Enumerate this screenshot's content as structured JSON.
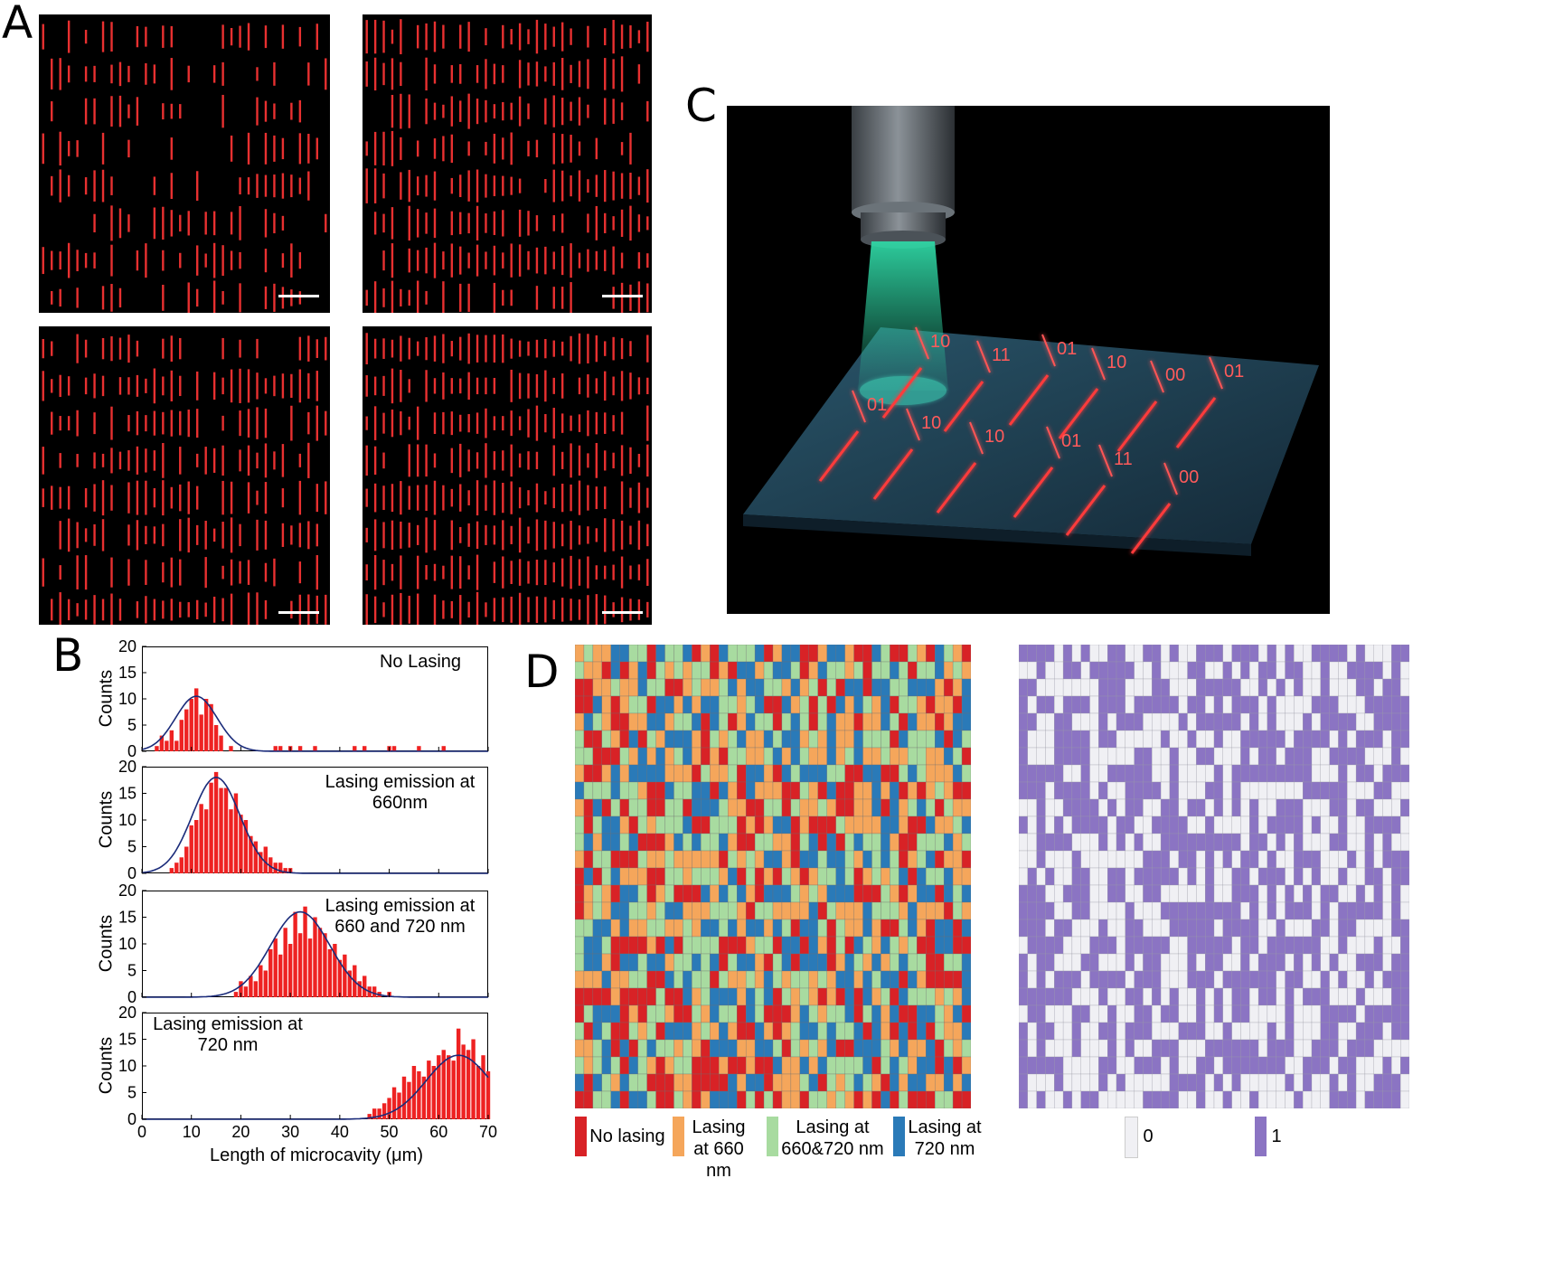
{
  "panels": {
    "a": "A",
    "b": "B",
    "c": "C",
    "d": "D"
  },
  "panel_c": {
    "codes": [
      "10",
      "11",
      "01",
      "10",
      "00",
      "01",
      "01",
      "10",
      "10",
      "01",
      "11",
      "00"
    ],
    "colors": {
      "lasing": "#ff3b3b",
      "beam": "#2fd6a4",
      "substrate": "#1f3c4f"
    }
  },
  "histograms": {
    "x_label": "Length of microcavity (μm)",
    "y_label": "Counts",
    "x_ticks": [
      "0",
      "10",
      "20",
      "30",
      "40",
      "50",
      "60",
      "70"
    ],
    "y_ticks": [
      "0",
      "5",
      "10",
      "15",
      "20"
    ],
    "bar_color": "#ee2222",
    "fit_color": "#1a2b7a"
  },
  "chart_data": [
    {
      "type": "bar",
      "title": "No Lasing",
      "xlabel": "",
      "ylabel": "Counts",
      "xlim": [
        0,
        70
      ],
      "ylim": [
        0,
        20
      ],
      "fit": {
        "mean": 11,
        "sd": 4.2,
        "peak": 10.5
      },
      "x": [
        3,
        4,
        5,
        6,
        7,
        8,
        9,
        10,
        11,
        12,
        13,
        14,
        15,
        16,
        18,
        27,
        28,
        30,
        32,
        35,
        43,
        45,
        50,
        51,
        56,
        61
      ],
      "values": [
        1,
        3,
        2,
        4,
        2,
        6,
        8,
        10,
        12,
        7,
        10,
        9,
        5,
        3,
        1,
        1,
        1,
        1,
        1,
        1,
        1,
        1,
        1,
        1,
        1,
        1
      ]
    },
    {
      "type": "bar",
      "title": "Lasing emission at 660nm",
      "xlabel": "",
      "ylabel": "Counts",
      "xlim": [
        0,
        70
      ],
      "ylim": [
        0,
        20
      ],
      "fit": {
        "mean": 15,
        "sd": 4.8,
        "peak": 18
      },
      "x": [
        6,
        7,
        8,
        9,
        10,
        11,
        12,
        13,
        14,
        15,
        16,
        17,
        18,
        19,
        20,
        21,
        22,
        23,
        24,
        25,
        26,
        27,
        28,
        29,
        30
      ],
      "values": [
        1,
        2,
        3,
        5,
        9,
        10,
        13,
        12,
        17,
        19,
        16,
        16,
        12,
        15,
        11,
        10,
        7,
        6,
        4,
        5,
        3,
        2,
        2,
        1,
        1
      ]
    },
    {
      "type": "bar",
      "title": "Lasing emission at 660 and 720 nm",
      "xlabel": "",
      "ylabel": "Counts",
      "xlim": [
        0,
        70
      ],
      "ylim": [
        0,
        20
      ],
      "fit": {
        "mean": 32,
        "sd": 6,
        "peak": 16
      },
      "x": [
        19,
        20,
        21,
        22,
        23,
        24,
        25,
        26,
        27,
        28,
        29,
        30,
        31,
        32,
        33,
        34,
        35,
        36,
        37,
        38,
        39,
        40,
        41,
        42,
        43,
        44,
        45,
        46,
        47,
        48,
        50
      ],
      "values": [
        1,
        3,
        2,
        4,
        3,
        6,
        5,
        9,
        11,
        8,
        13,
        10,
        16,
        12,
        17,
        11,
        15,
        13,
        12,
        9,
        10,
        7,
        8,
        5,
        6,
        3,
        4,
        2,
        2,
        1,
        1
      ]
    },
    {
      "type": "bar",
      "title": "Lasing emission at 720 nm",
      "xlabel": "Length of microcavity (μm)",
      "ylabel": "Counts",
      "xlim": [
        0,
        70
      ],
      "ylim": [
        0,
        20
      ],
      "fit": {
        "mean": 64,
        "sd": 6.5,
        "peak": 12
      },
      "x": [
        46,
        47,
        48,
        49,
        50,
        51,
        52,
        53,
        54,
        55,
        56,
        57,
        58,
        59,
        60,
        61,
        62,
        63,
        64,
        65,
        66,
        67,
        68,
        69,
        70
      ],
      "values": [
        1,
        2,
        2,
        3,
        4,
        6,
        5,
        8,
        7,
        10,
        9,
        8,
        11,
        10,
        12,
        13,
        12,
        11,
        17,
        14,
        13,
        15,
        10,
        12,
        9
      ]
    }
  ],
  "panel_d": {
    "legend_left": [
      {
        "label": "No lasing",
        "color": "#d82226"
      },
      {
        "label": "Lasing at 660 nm",
        "color": "#f5a65b"
      },
      {
        "label": "Lasing at 660&720 nm",
        "color": "#a8dba0"
      },
      {
        "label": "Lasing at 720 nm",
        "color": "#2a7ab8"
      }
    ],
    "legend_right": [
      {
        "label": "0",
        "color": "#f0f0f4"
      },
      {
        "label": "1",
        "color": "#8b74c3"
      }
    ]
  }
}
